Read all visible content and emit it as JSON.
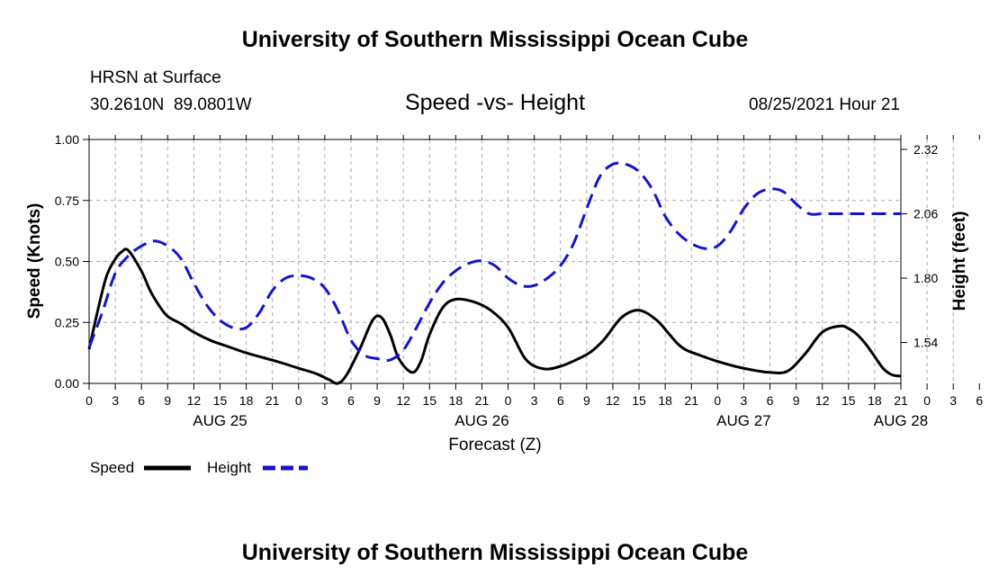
{
  "page": {
    "header_title": "University of Southern Mississippi Ocean Cube",
    "footer_title": "University of Southern Mississippi Ocean Cube",
    "station_label": "HRSN at Surface",
    "coordinates": "30.2610N  89.0801W",
    "timestamp": "08/25/2021 Hour 21"
  },
  "legend": {
    "speed_label": "Speed",
    "height_label": "Height",
    "speed_color": "#000000",
    "height_color": "#1414cc"
  },
  "chart_data": {
    "type": "line",
    "title": "Speed -vs- Height",
    "xlabel": "Forecast (Z)",
    "ylabel": "Speed (Knots)",
    "y2label": "Height (feet)",
    "x_range_hours": [
      0,
      93
    ],
    "ylim": [
      0,
      1.0
    ],
    "y2lim": [
      1.375,
      2.36
    ],
    "y_ticks": [
      "0.00",
      "0.25",
      "0.50",
      "0.75",
      "1.00"
    ],
    "y_tick_values": [
      0,
      0.25,
      0.5,
      0.75,
      1.0
    ],
    "y2_ticks": [
      "1.54",
      "1.80",
      "2.06",
      "2.32"
    ],
    "y2_tick_values": [
      1.54,
      1.8,
      2.06,
      2.32
    ],
    "x_tick_labels": [
      "0",
      "3",
      "6",
      "9",
      "12",
      "15",
      "18",
      "21",
      "0",
      "3",
      "6",
      "9",
      "12",
      "15",
      "18",
      "21",
      "0",
      "3",
      "6",
      "9",
      "12",
      "15",
      "18",
      "21",
      "0",
      "3",
      "6",
      "9",
      "12",
      "15",
      "18",
      "21",
      "0",
      "3",
      "6"
    ],
    "day_labels": [
      {
        "hour": 15,
        "label": "AUG 25"
      },
      {
        "hour": 45,
        "label": "AUG 26"
      },
      {
        "hour": 75,
        "label": "AUG 27"
      },
      {
        "hour": 93,
        "label": "AUG 28"
      }
    ],
    "grid": true,
    "series": [
      {
        "name": "Speed",
        "axis": "left",
        "style": "solid",
        "color": "#000000",
        "x": [
          0,
          1,
          2,
          3,
          3.75,
          4.5,
          6,
          7,
          8,
          9,
          10.5,
          12,
          14,
          16,
          18,
          20,
          22,
          24,
          26,
          27.5,
          28.5,
          29.5,
          31,
          32.5,
          33.5,
          34.5,
          35.5,
          37,
          38,
          39,
          40.5,
          42,
          44,
          46,
          48,
          50,
          52,
          54,
          56,
          57.5,
          59,
          61,
          63,
          65,
          66.5,
          67.5,
          68.5,
          70,
          72,
          74,
          76,
          78,
          80,
          82,
          84,
          86,
          87,
          88,
          89,
          90,
          91,
          92,
          93
        ],
        "y": [
          0.14,
          0.3,
          0.44,
          0.51,
          0.54,
          0.545,
          0.46,
          0.38,
          0.32,
          0.275,
          0.245,
          0.21,
          0.175,
          0.15,
          0.125,
          0.105,
          0.085,
          0.062,
          0.04,
          0.015,
          0.0,
          0.035,
          0.14,
          0.26,
          0.27,
          0.2,
          0.1,
          0.045,
          0.09,
          0.2,
          0.31,
          0.345,
          0.335,
          0.3,
          0.23,
          0.1,
          0.06,
          0.07,
          0.1,
          0.13,
          0.18,
          0.27,
          0.3,
          0.26,
          0.2,
          0.16,
          0.135,
          0.115,
          0.09,
          0.07,
          0.055,
          0.045,
          0.05,
          0.12,
          0.21,
          0.235,
          0.225,
          0.2,
          0.16,
          0.11,
          0.06,
          0.035,
          0.03
        ]
      },
      {
        "name": "Height",
        "axis": "right",
        "style": "dashed",
        "color": "#1414cc",
        "x": [
          0,
          1.5,
          3,
          4.5,
          6,
          7.5,
          9,
          10.5,
          12,
          13.5,
          15,
          16.5,
          18,
          19.5,
          21,
          22.5,
          24,
          25.5,
          27,
          28.5,
          30,
          31.5,
          33,
          34.5,
          36,
          37.5,
          39,
          40.5,
          42,
          43.5,
          45,
          46.5,
          48,
          49.5,
          51,
          52.5,
          54,
          55.5,
          57,
          58.5,
          60,
          61.5,
          63,
          64.5,
          66,
          67.5,
          69,
          70.5,
          72,
          73.5,
          75,
          76.5,
          78,
          79.5,
          81,
          82.5,
          84,
          85.5,
          87,
          88.5,
          90,
          91.5,
          93
        ],
        "y": [
          1.52,
          1.66,
          1.82,
          1.89,
          1.93,
          1.95,
          1.93,
          1.88,
          1.78,
          1.69,
          1.63,
          1.6,
          1.6,
          1.66,
          1.75,
          1.8,
          1.81,
          1.8,
          1.76,
          1.67,
          1.55,
          1.49,
          1.475,
          1.47,
          1.51,
          1.6,
          1.7,
          1.78,
          1.83,
          1.86,
          1.87,
          1.85,
          1.8,
          1.77,
          1.77,
          1.8,
          1.85,
          1.94,
          2.08,
          2.21,
          2.26,
          2.26,
          2.23,
          2.16,
          2.05,
          1.98,
          1.94,
          1.92,
          1.93,
          1.99,
          2.08,
          2.14,
          2.16,
          2.15,
          2.1,
          2.06,
          2.06,
          2.06,
          2.06,
          2.06,
          2.06,
          2.06,
          2.06
        ]
      }
    ]
  }
}
